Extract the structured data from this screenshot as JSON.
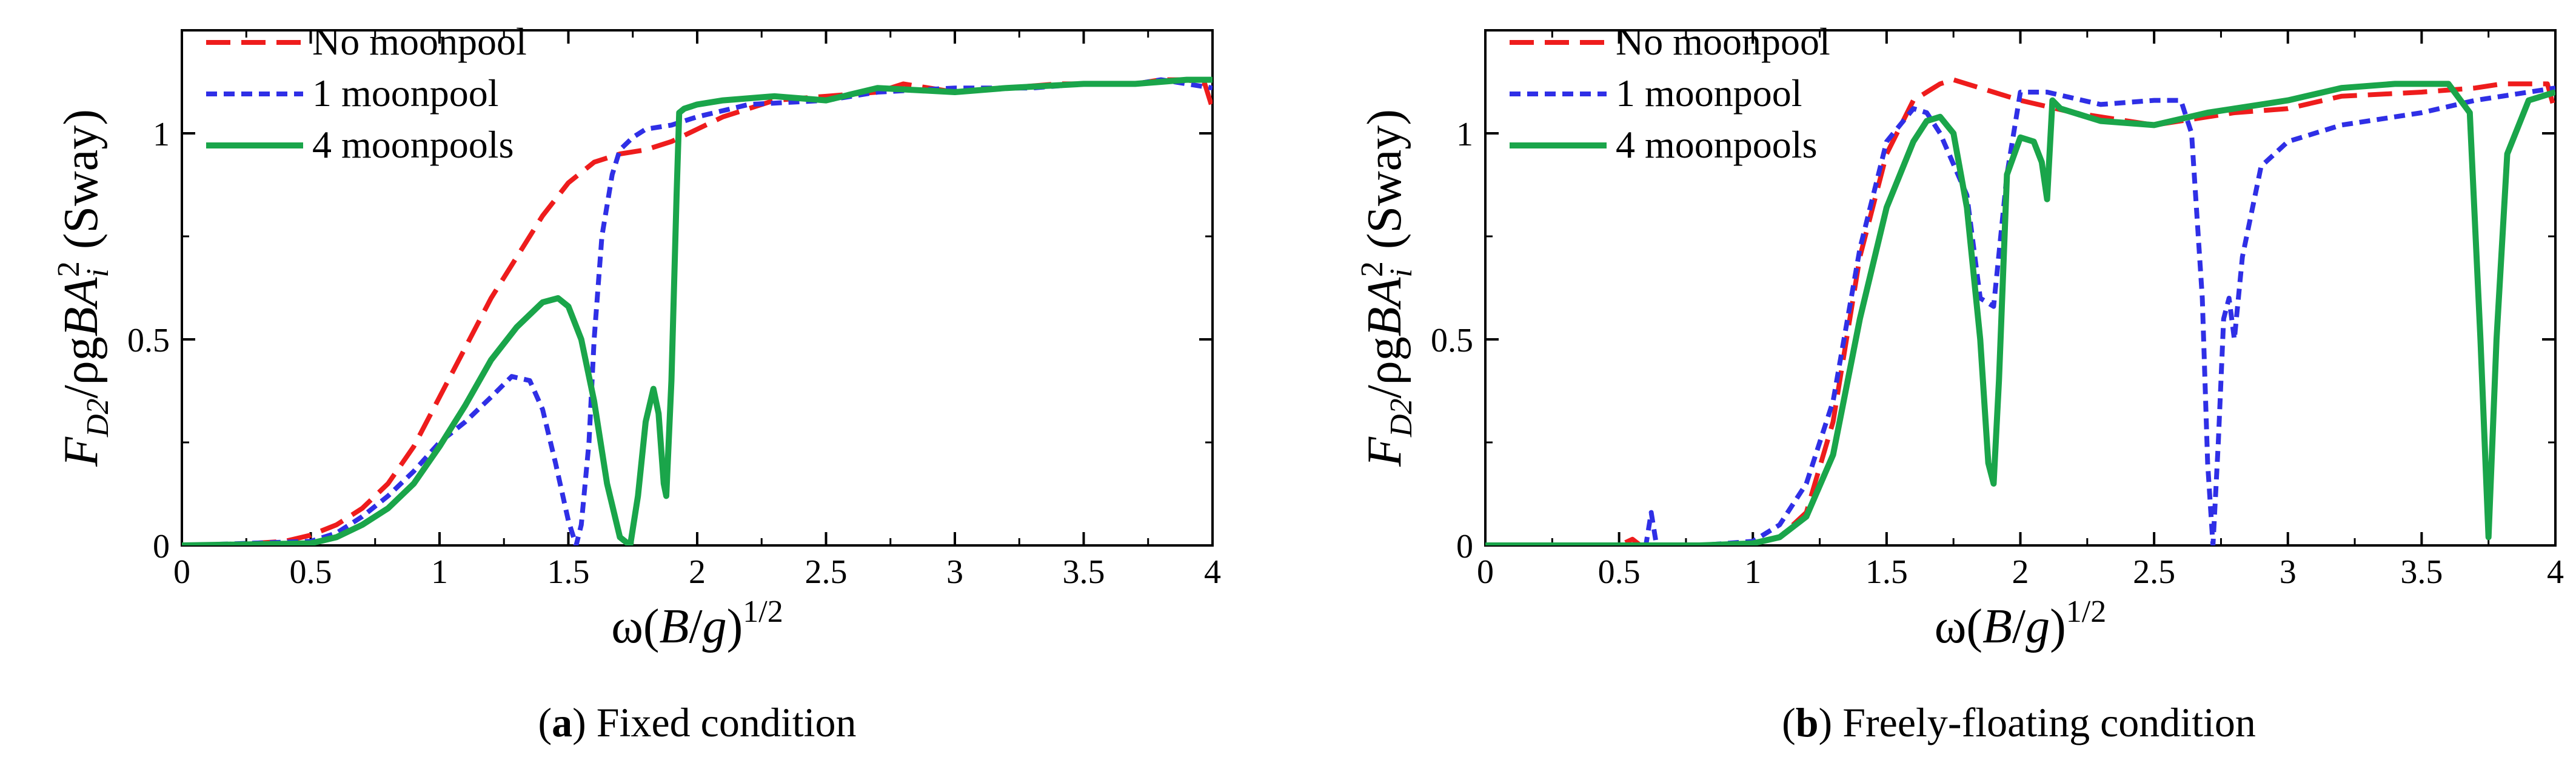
{
  "chart_data": [
    {
      "type": "line",
      "panel_tag": "a",
      "caption": "Fixed condition",
      "xlabel": "ω(B/g)1/2",
      "ylabel": "FD2/ρgBAi2 (Sway)",
      "xlim": [
        0,
        4
      ],
      "ylim": [
        0,
        1.25
      ],
      "xticks": [
        "0",
        "0.5",
        "1",
        "1.5",
        "2",
        "2.5",
        "3",
        "3.5",
        "4"
      ],
      "yticks": [
        "0",
        "0.5",
        "1"
      ],
      "legend_position": "top-left",
      "series": [
        {
          "name": "No moonpool",
          "color": "#ee1c1c",
          "dash": "long-dash",
          "x": [
            0,
            0.2,
            0.4,
            0.5,
            0.6,
            0.7,
            0.8,
            0.9,
            1.0,
            1.1,
            1.2,
            1.3,
            1.4,
            1.5,
            1.6,
            1.7,
            1.8,
            1.9,
            2.0,
            2.1,
            2.2,
            2.3,
            2.5,
            2.7,
            2.8,
            2.9,
            3.0,
            3.2,
            3.4,
            3.6,
            3.7,
            3.8,
            3.9,
            3.97,
            4.0
          ],
          "y": [
            0,
            0.002,
            0.01,
            0.025,
            0.05,
            0.09,
            0.15,
            0.24,
            0.36,
            0.48,
            0.6,
            0.7,
            0.8,
            0.88,
            0.93,
            0.95,
            0.96,
            0.98,
            1.01,
            1.04,
            1.06,
            1.08,
            1.09,
            1.1,
            1.12,
            1.11,
            1.1,
            1.11,
            1.12,
            1.12,
            1.12,
            1.13,
            1.13,
            1.12,
            1.06
          ]
        },
        {
          "name": "1 moonpool",
          "color": "#2f2fe6",
          "dash": "short-dash",
          "x": [
            0,
            0.5,
            0.6,
            0.7,
            0.8,
            0.9,
            1.0,
            1.1,
            1.2,
            1.28,
            1.35,
            1.4,
            1.45,
            1.5,
            1.53,
            1.55,
            1.58,
            1.6,
            1.63,
            1.67,
            1.7,
            1.75,
            1.8,
            1.9,
            2.0,
            2.2,
            2.5,
            2.7,
            3.0,
            3.3,
            3.5,
            3.7,
            3.8,
            3.9,
            4.0
          ],
          "y": [
            0,
            0.01,
            0.03,
            0.07,
            0.12,
            0.18,
            0.25,
            0.3,
            0.36,
            0.41,
            0.4,
            0.33,
            0.2,
            0.06,
            0.0,
            0.05,
            0.25,
            0.5,
            0.75,
            0.9,
            0.96,
            0.99,
            1.01,
            1.02,
            1.04,
            1.07,
            1.08,
            1.1,
            1.11,
            1.11,
            1.12,
            1.12,
            1.13,
            1.12,
            1.11
          ]
        },
        {
          "name": "4 moonpools",
          "color": "#1aa54a",
          "dash": "solid",
          "x": [
            0,
            0.5,
            0.6,
            0.7,
            0.8,
            0.9,
            1.0,
            1.1,
            1.2,
            1.3,
            1.4,
            1.46,
            1.5,
            1.55,
            1.6,
            1.65,
            1.7,
            1.74,
            1.77,
            1.8,
            1.83,
            1.85,
            1.87,
            1.88,
            1.9,
            1.92,
            1.93,
            1.95,
            2.0,
            2.1,
            2.3,
            2.5,
            2.7,
            3.0,
            3.2,
            3.5,
            3.7,
            3.9,
            4.0
          ],
          "y": [
            0,
            0.005,
            0.02,
            0.05,
            0.09,
            0.15,
            0.24,
            0.34,
            0.45,
            0.53,
            0.59,
            0.6,
            0.58,
            0.5,
            0.35,
            0.15,
            0.02,
            0.0,
            0.12,
            0.3,
            0.38,
            0.32,
            0.15,
            0.12,
            0.4,
            0.85,
            1.05,
            1.06,
            1.07,
            1.08,
            1.09,
            1.08,
            1.11,
            1.1,
            1.11,
            1.12,
            1.12,
            1.13,
            1.13
          ]
        }
      ]
    },
    {
      "type": "line",
      "panel_tag": "b",
      "caption": "Freely-floating condition",
      "xlabel": "ω(B/g)1/2",
      "ylabel": "FD2/ρgBAi2 (Sway)",
      "xlim": [
        0,
        4
      ],
      "ylim": [
        0,
        1.25
      ],
      "xticks": [
        "0",
        "0.5",
        "1",
        "1.5",
        "2",
        "2.5",
        "3",
        "3.5",
        "4"
      ],
      "yticks": [
        "0",
        "0.5",
        "1"
      ],
      "legend_position": "top-left",
      "series": [
        {
          "name": "No moonpool",
          "color": "#ee1c1c",
          "dash": "long-dash",
          "x": [
            0,
            0.5,
            0.55,
            0.58,
            0.6,
            0.8,
            1.0,
            1.1,
            1.2,
            1.3,
            1.4,
            1.5,
            1.6,
            1.7,
            1.75,
            1.8,
            1.9,
            2.0,
            2.2,
            2.4,
            2.5,
            2.6,
            2.8,
            3.0,
            3.2,
            3.5,
            3.7,
            3.8,
            3.9,
            3.97,
            4.0
          ],
          "y": [
            0,
            0,
            0.015,
            0.0,
            0,
            0.0,
            0.005,
            0.02,
            0.08,
            0.3,
            0.7,
            0.95,
            1.08,
            1.12,
            1.13,
            1.12,
            1.1,
            1.08,
            1.05,
            1.03,
            1.02,
            1.03,
            1.05,
            1.06,
            1.09,
            1.1,
            1.11,
            1.12,
            1.12,
            1.12,
            1.05
          ]
        },
        {
          "name": "1 moonpool",
          "color": "#2f2fe6",
          "dash": "short-dash",
          "x": [
            0,
            0.6,
            0.62,
            0.64,
            0.66,
            0.8,
            1.0,
            1.1,
            1.2,
            1.3,
            1.4,
            1.5,
            1.6,
            1.65,
            1.7,
            1.8,
            1.85,
            1.9,
            1.95,
            2.0,
            2.1,
            2.3,
            2.5,
            2.6,
            2.64,
            2.68,
            2.7,
            2.72,
            2.74,
            2.76,
            2.78,
            2.8,
            2.83,
            2.9,
            3.0,
            3.2,
            3.5,
            3.7,
            3.9,
            4.0
          ],
          "y": [
            0,
            0,
            0.08,
            0.0,
            0,
            0,
            0.01,
            0.05,
            0.15,
            0.35,
            0.72,
            0.98,
            1.06,
            1.05,
            1.0,
            0.85,
            0.6,
            0.58,
            0.9,
            1.1,
            1.1,
            1.07,
            1.08,
            1.08,
            1.0,
            0.6,
            0.2,
            0.0,
            0.25,
            0.55,
            0.6,
            0.5,
            0.7,
            0.92,
            0.98,
            1.02,
            1.05,
            1.08,
            1.1,
            1.11
          ]
        },
        {
          "name": "4 moonpools",
          "color": "#1aa54a",
          "dash": "solid",
          "x": [
            0,
            0.8,
            1.0,
            1.1,
            1.2,
            1.3,
            1.4,
            1.5,
            1.6,
            1.65,
            1.7,
            1.75,
            1.8,
            1.85,
            1.88,
            1.9,
            1.92,
            1.95,
            2.0,
            2.05,
            2.08,
            2.1,
            2.12,
            2.15,
            2.2,
            2.3,
            2.5,
            2.7,
            2.9,
            3.0,
            3.2,
            3.4,
            3.6,
            3.68,
            3.72,
            3.75,
            3.78,
            3.82,
            3.9,
            4.0
          ],
          "y": [
            0,
            0,
            0.005,
            0.02,
            0.07,
            0.22,
            0.55,
            0.82,
            0.98,
            1.03,
            1.04,
            1.0,
            0.82,
            0.5,
            0.2,
            0.15,
            0.4,
            0.9,
            0.99,
            0.98,
            0.93,
            0.84,
            1.08,
            1.06,
            1.05,
            1.03,
            1.02,
            1.05,
            1.07,
            1.08,
            1.11,
            1.12,
            1.12,
            1.05,
            0.5,
            0.02,
            0.5,
            0.95,
            1.08,
            1.1
          ]
        }
      ]
    }
  ]
}
